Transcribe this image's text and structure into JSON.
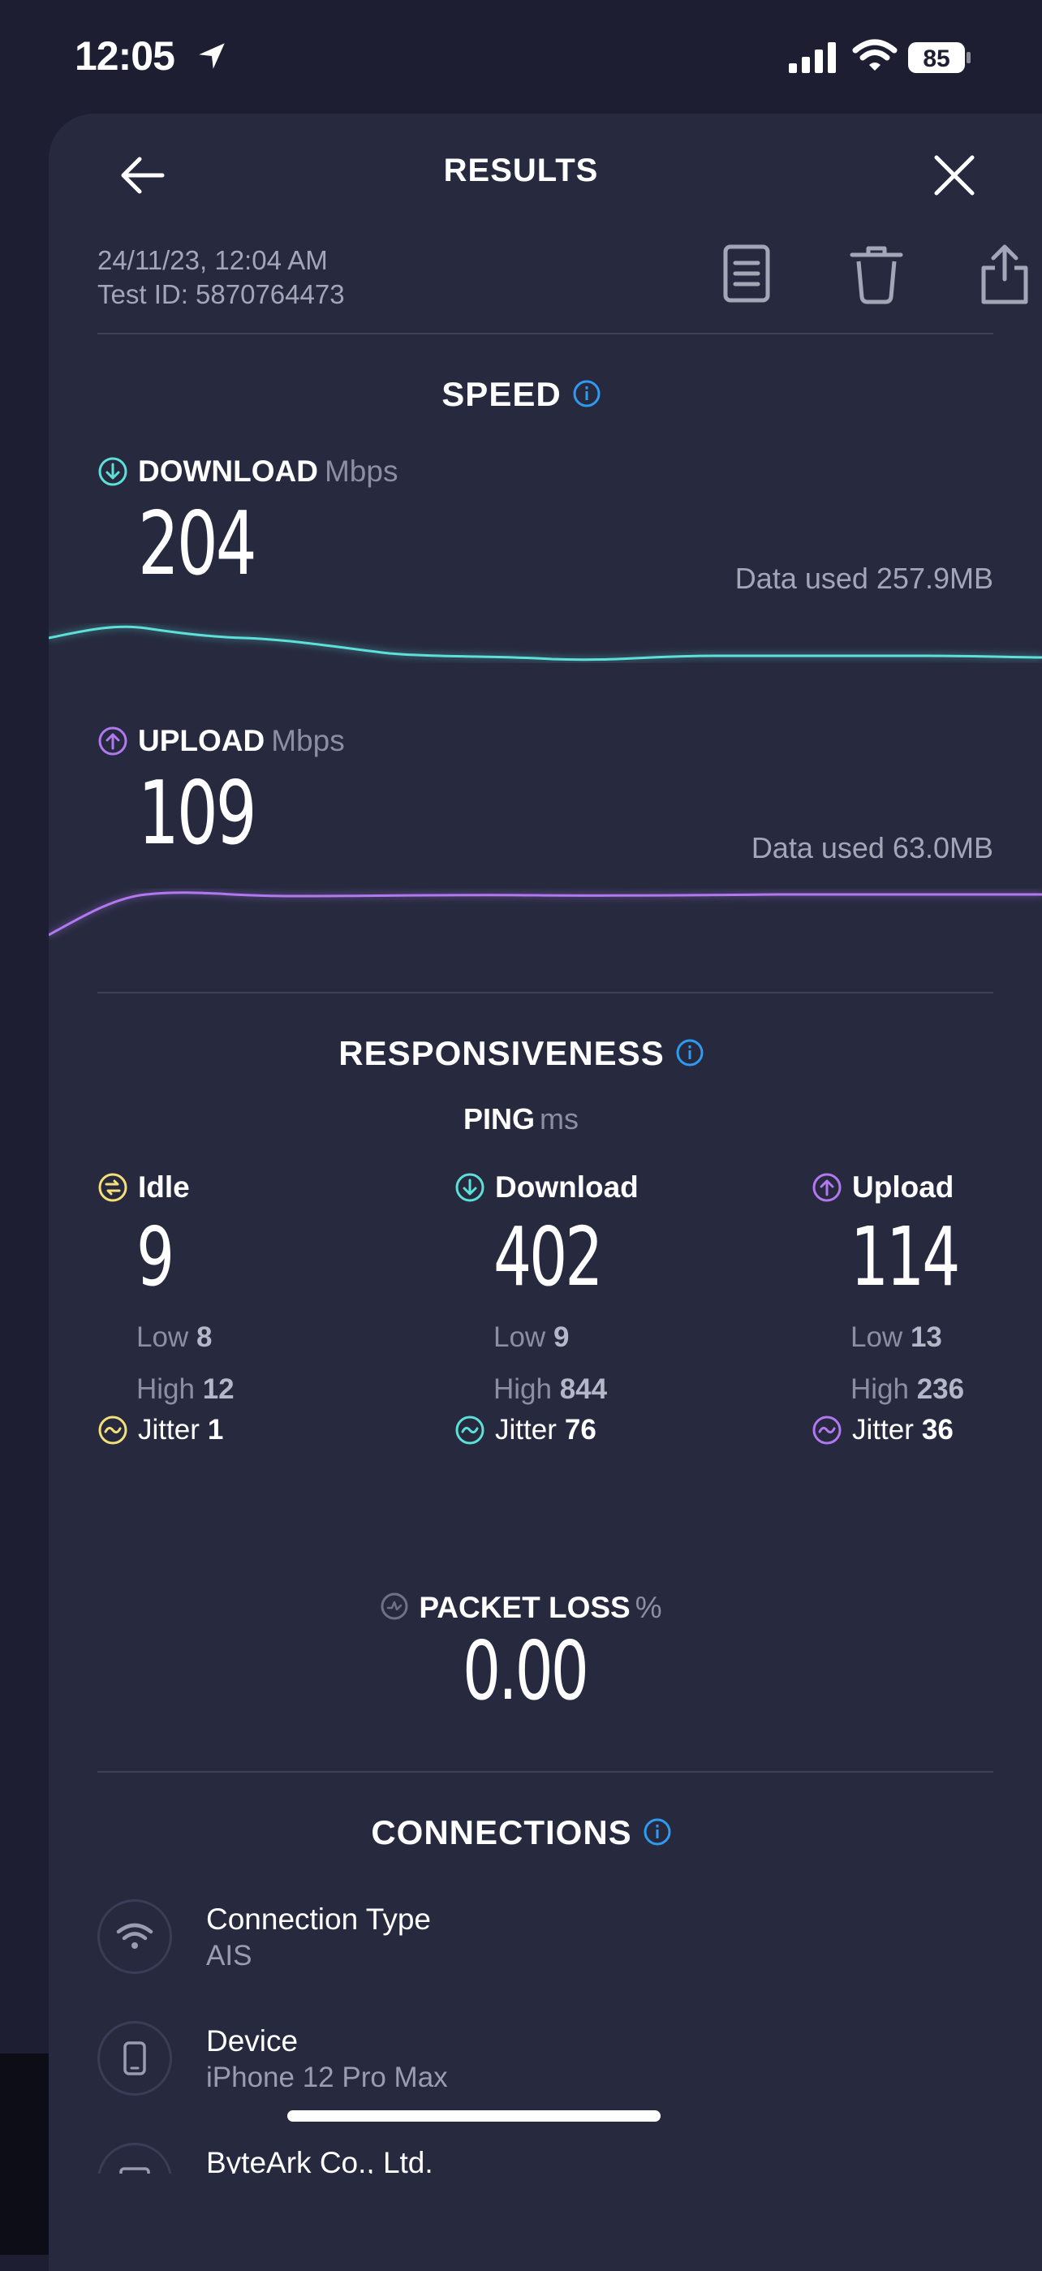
{
  "status_bar": {
    "time": "12:05",
    "battery": "85"
  },
  "header": {
    "title": "RESULTS"
  },
  "meta": {
    "date": "24/11/23, 12:04 AM",
    "test_id": "Test ID: 5870764473"
  },
  "speed": {
    "title": "SPEED",
    "download": {
      "label": "DOWNLOAD",
      "unit": "Mbps",
      "value": "204",
      "data_used": "Data used 257.9MB"
    },
    "upload": {
      "label": "UPLOAD",
      "unit": "Mbps",
      "value": "109",
      "data_used": "Data used 63.0MB"
    }
  },
  "responsiveness": {
    "title": "RESPONSIVENESS",
    "ping_label": "PING",
    "ping_unit": "ms",
    "columns": [
      {
        "name": "Idle",
        "value": "9",
        "low_label": "Low",
        "low": "8",
        "high_label": "High",
        "high": "12",
        "jitter_label": "Jitter",
        "jitter": "1"
      },
      {
        "name": "Download",
        "value": "402",
        "low_label": "Low",
        "low": "9",
        "high_label": "High",
        "high": "844",
        "jitter_label": "Jitter",
        "jitter": "76"
      },
      {
        "name": "Upload",
        "value": "114",
        "low_label": "Low",
        "low": "13",
        "high_label": "High",
        "high": "236",
        "jitter_label": "Jitter",
        "jitter": "36"
      }
    ]
  },
  "packet_loss": {
    "label": "PACKET LOSS",
    "unit": "%",
    "value": "0.00"
  },
  "connections": {
    "title": "CONNECTIONS",
    "items": [
      {
        "title": "Connection Type",
        "value": "AIS",
        "icon": "wifi-icon"
      },
      {
        "title": "Device",
        "value": "iPhone 12 Pro Max",
        "icon": "phone-icon"
      },
      {
        "title": "ByteArk Co., Ltd.",
        "value": "",
        "icon": "server-icon"
      }
    ]
  },
  "colors": {
    "download": "#5de0d8",
    "upload": "#b178f0",
    "idle": "#f3e07a",
    "info": "#2f9bf0"
  }
}
